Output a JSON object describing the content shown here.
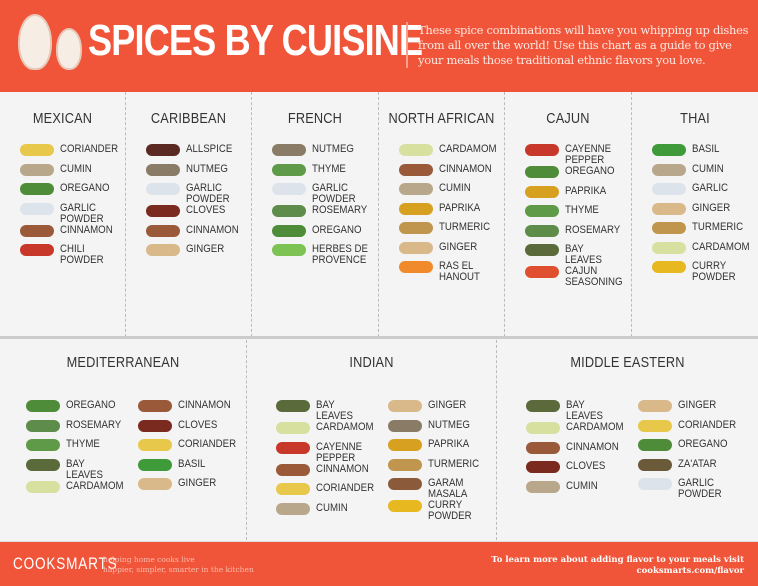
{
  "header": {
    "title": "SPICES BY CUISINE",
    "description": "These spice combinations will have you whipping up dishes from all over the world! Use this chart as a guide to give your meals those traditional ethnic flavors you love."
  },
  "icon_colors": {
    "coriander": "#E8C84A",
    "cumin": "#B8A78A",
    "oregano": "#4E8C3A",
    "garlic powder": "#DDE3EA",
    "cinnamon": "#9A5A3A",
    "chili powder": "#C8382A",
    "allspice": "#5A2A22",
    "nutmeg": "#8A7B66",
    "cloves": "#7A2A1E",
    "ginger": "#D9B98A",
    "thyme": "#5E9A48",
    "rosemary": "#5E8C4A",
    "herbes de provence": "#7CC354",
    "cardamom": "#D8E0A0",
    "paprika": "#D8A020",
    "turmeric": "#C0954E",
    "ras el hanout": "#F08A2A",
    "cayenne pepper": "#C8382A",
    "bay leaves": "#5A6A3A",
    "cajun seasoning": "#E05030",
    "basil": "#3F9A3A",
    "curry powder": "#E8B820",
    "garam masala": "#8A5A3A",
    "za'atar": "#6A5A3A"
  },
  "top": [
    {
      "name": "MEXICAN",
      "items": [
        "Coriander",
        "Cumin",
        "Oregano",
        "Garlic\nPowder",
        "Cinnamon",
        "Chili\nPowder"
      ]
    },
    {
      "name": "CARIBBEAN",
      "items": [
        "Allspice",
        "Nutmeg",
        "Garlic\nPowder",
        "Cloves",
        "Cinnamon",
        "Ginger"
      ]
    },
    {
      "name": "FRENCH",
      "items": [
        "Nutmeg",
        "Thyme",
        "Garlic\nPowder",
        "Rosemary",
        "Oregano",
        "Herbes de\nProvence"
      ]
    },
    {
      "name": "NORTH AFRICAN",
      "items": [
        "Cardamom",
        "Cinnamon",
        "Cumin",
        "Paprika",
        "Turmeric",
        "Ginger",
        "Ras el\nHanout"
      ]
    },
    {
      "name": "CAJUN",
      "items": [
        "Cayenne\nPepper",
        "Oregano",
        "Paprika",
        "Thyme",
        "Rosemary",
        "Bay Leaves",
        "Cajun\nSeasoning"
      ]
    },
    {
      "name": "THAI",
      "items": [
        "Basil",
        "Cumin",
        "Garlic",
        "Ginger",
        "Turmeric",
        "Cardamom",
        "Curry\nPowder"
      ]
    }
  ],
  "bottom": [
    {
      "name": "MEDITERRANEAN",
      "cols": [
        [
          "Oregano",
          "Rosemary",
          "Thyme",
          "Bay Leaves",
          "Cardamom"
        ],
        [
          "Cinnamon",
          "Cloves",
          "Coriander",
          "Basil",
          "Ginger"
        ]
      ]
    },
    {
      "name": "INDIAN",
      "cols": [
        [
          "Bay Leaves",
          "Cardamom",
          "Cayenne\nPepper",
          "Cinnamon",
          "Coriander",
          "Cumin"
        ],
        [
          "Ginger",
          "Nutmeg",
          "Paprika",
          "Turmeric",
          "Garam\nMasala",
          "Curry\nPowder"
        ]
      ]
    },
    {
      "name": "MIDDLE EASTERN",
      "cols": [
        [
          "Bay Leaves",
          "Cardamom",
          "Cinnamon",
          "Cloves",
          "Cumin"
        ],
        [
          "Ginger",
          "Coriander",
          "Oregano",
          "Za'atar",
          "Garlic\nPowder"
        ]
      ]
    }
  ],
  "footer": {
    "logo": "COOKSMARTS",
    "tagline": "helping home cooks live\nhappier, simpler, smarter in the kitchen",
    "cta": "To learn more about adding flavor to your meals visit\ncooksmarts.com/flavor"
  }
}
